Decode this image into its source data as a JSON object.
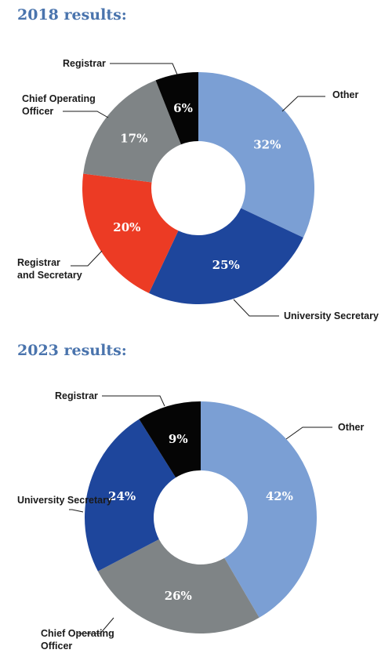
{
  "chart_data": [
    {
      "type": "pie",
      "title": "2018 results:",
      "slices": [
        {
          "name": "Other",
          "value": 32,
          "label": "32%",
          "color": "#7b9fd4"
        },
        {
          "name": "University Secretary",
          "value": 25,
          "label": "25%",
          "color": "#1e469c"
        },
        {
          "name": "Registrar and Secretary",
          "value": 20,
          "label": "20%",
          "color": "#ec3b24"
        },
        {
          "name": "Chief Operating Officer",
          "value": 17,
          "label": "17%",
          "color": "#7f8486"
        },
        {
          "name": "Registrar",
          "value": 6,
          "label": "6%",
          "color": "#050505"
        }
      ]
    },
    {
      "type": "pie",
      "title": "2023 results:",
      "slices": [
        {
          "name": "Other",
          "value": 42,
          "label": "42%",
          "color": "#7b9fd4"
        },
        {
          "name": "Chief Operating Officer",
          "value": 26,
          "label": "26%",
          "color": "#7f8486"
        },
        {
          "name": "University Secretary",
          "value": 24,
          "label": "24%",
          "color": "#1e469c"
        },
        {
          "name": "Registrar",
          "value": 9,
          "label": "9%",
          "color": "#050505"
        }
      ]
    }
  ]
}
